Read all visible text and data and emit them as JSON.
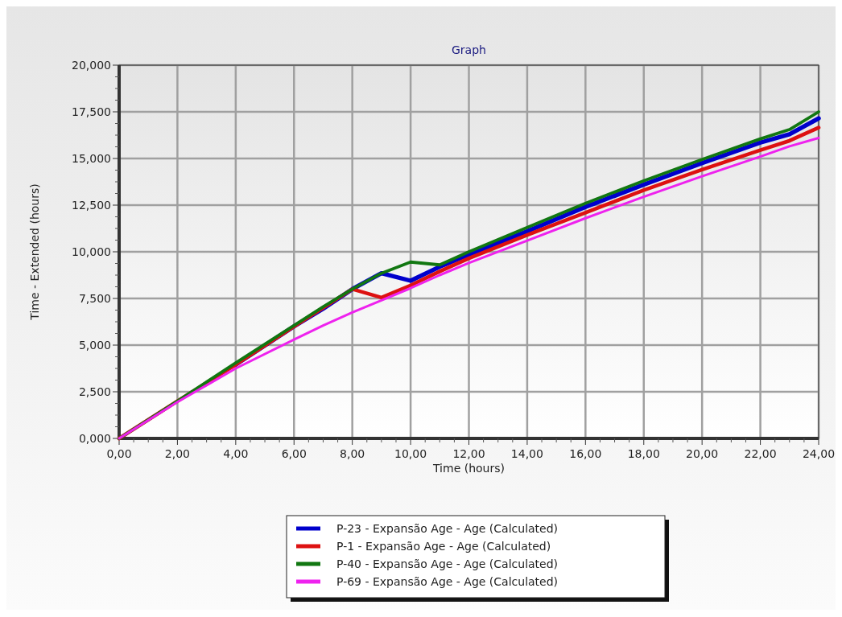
{
  "chart_data": {
    "type": "line",
    "title": "Graph",
    "xlabel": "Time (hours)",
    "ylabel": "Time - Extended (hours)",
    "x": [
      0,
      2,
      4,
      6,
      7,
      8,
      9,
      10,
      11,
      12,
      14,
      16,
      18,
      20,
      22,
      23,
      24
    ],
    "series": [
      {
        "name": "P-23 - Expansão Age - Age (Calculated)",
        "color": "#0000cc",
        "values": [
          null,
          null,
          3.95,
          6.0,
          6.95,
          8.0,
          8.85,
          8.45,
          9.2,
          9.85,
          11.1,
          12.4,
          13.6,
          14.75,
          15.85,
          16.3,
          17.15
        ]
      },
      {
        "name": "P-1 - Expansão Age - Age (Calculated)",
        "color": "#dd1111",
        "values": [
          0,
          2.0,
          3.95,
          6.0,
          7.0,
          8.0,
          7.55,
          8.2,
          8.95,
          9.65,
          10.9,
          12.1,
          13.3,
          14.4,
          15.45,
          15.95,
          16.65
        ]
      },
      {
        "name": "P-40 - Expansão Age - Age (Calculated)",
        "color": "#117711",
        "values": [
          0,
          2.0,
          4.05,
          6.05,
          7.05,
          8.0,
          8.85,
          9.45,
          9.3,
          10.0,
          11.3,
          12.6,
          13.8,
          14.95,
          16.05,
          16.55,
          17.5
        ]
      },
      {
        "name": "P-69 - Expansão Age - Age (Calculated)",
        "color": "#ee22ee",
        "values": [
          0,
          1.95,
          3.75,
          5.3,
          6.05,
          6.75,
          7.4,
          8.05,
          8.75,
          9.4,
          10.6,
          11.8,
          12.95,
          14.05,
          15.1,
          15.65,
          16.1
        ]
      }
    ],
    "xlim": [
      0,
      24
    ],
    "xticks": [
      {
        "value": 0,
        "label": "0,00"
      },
      {
        "value": 2,
        "label": "2,00"
      },
      {
        "value": 4,
        "label": "4,00"
      },
      {
        "value": 6,
        "label": "6,00"
      },
      {
        "value": 8,
        "label": "8,00"
      },
      {
        "value": 10,
        "label": "10,00"
      },
      {
        "value": 12,
        "label": "12,00"
      },
      {
        "value": 14,
        "label": "14,00"
      },
      {
        "value": 16,
        "label": "16,00"
      },
      {
        "value": 18,
        "label": "18,00"
      },
      {
        "value": 20,
        "label": "20,00"
      },
      {
        "value": 22,
        "label": "22,00"
      },
      {
        "value": 24,
        "label": "24,00"
      }
    ],
    "ylim": [
      0,
      20
    ],
    "yticks": [
      {
        "value": 0,
        "label": "0,000"
      },
      {
        "value": 2.5,
        "label": "2,500"
      },
      {
        "value": 5,
        "label": "5,000"
      },
      {
        "value": 7.5,
        "label": "7,500"
      },
      {
        "value": 10,
        "label": "10,000"
      },
      {
        "value": 12.5,
        "label": "12,500"
      },
      {
        "value": 15,
        "label": "15,000"
      },
      {
        "value": 17.5,
        "label": "17,500"
      },
      {
        "value": 20,
        "label": "20,000"
      }
    ],
    "grid": true,
    "legend": "bottom",
    "marker": "none",
    "line_style": "solid"
  }
}
